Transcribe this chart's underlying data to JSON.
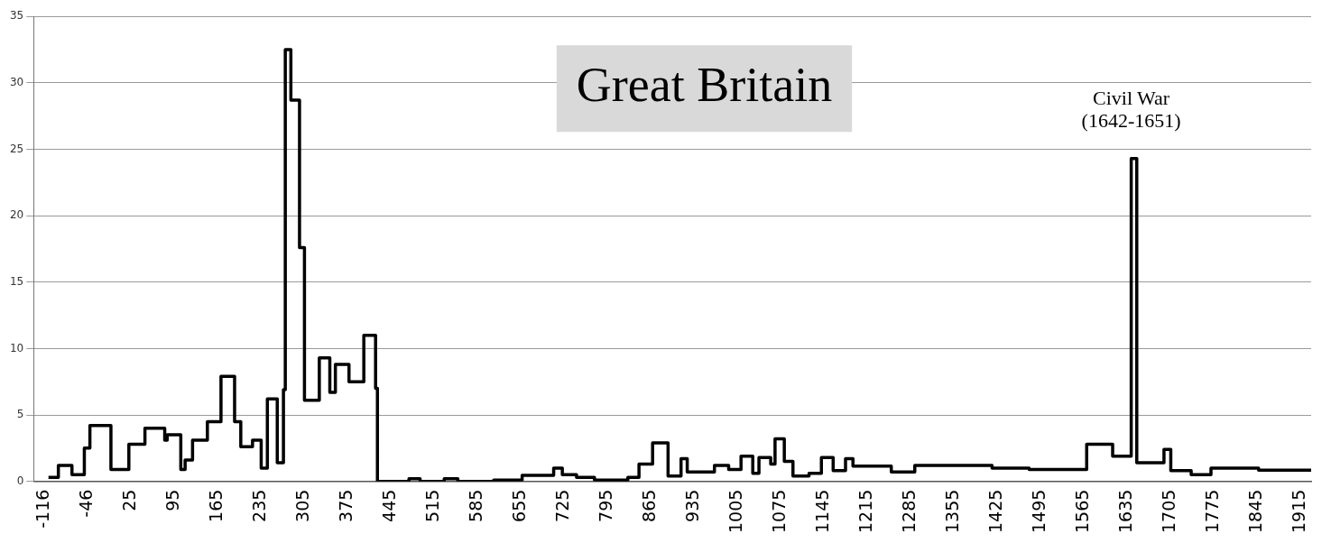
{
  "chart_data": {
    "type": "step",
    "title": "Great Britain",
    "x": [
      -109,
      -93,
      -71,
      -51,
      -42,
      -8,
      21,
      47,
      79,
      83,
      105,
      112,
      124,
      148,
      170,
      192,
      202,
      221,
      235,
      245,
      261,
      271,
      274,
      283,
      297,
      305,
      329,
      346,
      355,
      377,
      401,
      420,
      423,
      474,
      492,
      531,
      553,
      611,
      657,
      708,
      722,
      745,
      774,
      828,
      846,
      868,
      893,
      914,
      924,
      968,
      991,
      1011,
      1030,
      1040,
      1059,
      1066,
      1081,
      1095,
      1121,
      1141,
      1160,
      1180,
      1192,
      1254,
      1292,
      1417,
      1477,
      1570,
      1612,
      1642,
      1651,
      1695,
      1706,
      1739,
      1771,
      1848,
      1933
    ],
    "series": [
      {
        "color": "#000000",
        "values": [
          0.3,
          1.2,
          0.5,
          2.5,
          4.2,
          0.9,
          2.8,
          4.0,
          3.1,
          3.5,
          0.9,
          1.6,
          3.1,
          4.5,
          7.9,
          4.5,
          2.6,
          3.1,
          1.0,
          6.2,
          1.4,
          6.9,
          32.5,
          28.7,
          17.6,
          6.1,
          9.3,
          6.7,
          8.8,
          7.5,
          11.0,
          7.0,
          0,
          0.2,
          0,
          0.2,
          0,
          0.1,
          0.45,
          1.0,
          0.5,
          0.3,
          0.1,
          0.3,
          1.3,
          2.9,
          0.4,
          1.7,
          0.7,
          1.2,
          0.9,
          1.9,
          0.6,
          1.8,
          1.3,
          3.2,
          1.5,
          0.4,
          0.6,
          1.8,
          0.8,
          1.7,
          1.15,
          0.7,
          1.2,
          1.0,
          0.9,
          2.8,
          1.9,
          24.3,
          1.4,
          2.4,
          0.8,
          0.5,
          1.0,
          0.85,
          0.85
        ]
      }
    ],
    "xlim": [
      -133,
      1933
    ],
    "xticks": [
      -116,
      -46,
      25,
      95,
      165,
      235,
      305,
      375,
      445,
      515,
      585,
      655,
      725,
      795,
      865,
      935,
      1005,
      1075,
      1145,
      1215,
      1285,
      1355,
      1425,
      1495,
      1565,
      1635,
      1705,
      1775,
      1845,
      1915
    ],
    "ylim": [
      0,
      35
    ],
    "yticks": [
      0,
      5,
      10,
      15,
      20,
      25,
      30,
      35
    ],
    "grid": "y",
    "legend": false,
    "marker": "none",
    "line_style": "solid",
    "annotations": [
      {
        "text": "Civil War\n(1642-1651)",
        "x": 1642,
        "y": 24.3
      }
    ]
  }
}
